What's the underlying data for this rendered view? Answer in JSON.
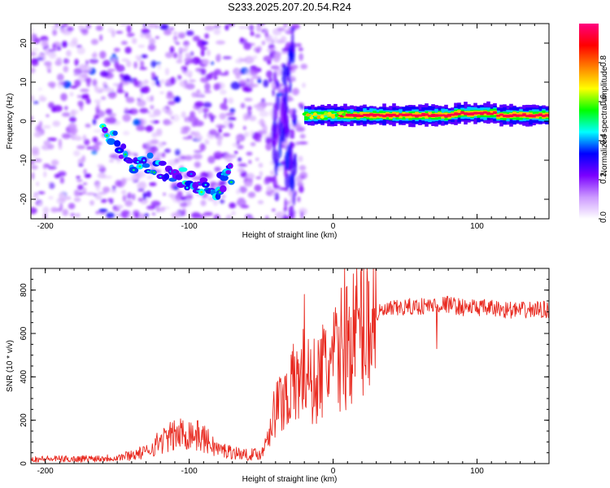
{
  "title": "S233.2025.207.20.54.R24",
  "colors": {
    "snr_line": "#e8281e",
    "frame": "#000000",
    "background": "#ffffff"
  },
  "chart_data": [
    {
      "type": "heatmap",
      "xlabel": "Height of straight line (km)",
      "ylabel": "Frequency (Hz)",
      "xlim": [
        -210,
        150
      ],
      "ylim": [
        -25,
        25
      ],
      "x_ticks": [
        -200,
        -100,
        0,
        100
      ],
      "y_ticks": [
        20,
        10,
        0,
        -10,
        -20
      ],
      "colorbar": {
        "label": "Normalized spectral amplitude",
        "range": [
          0.0,
          1.0
        ],
        "ticks": [
          "0.0",
          "0.2",
          "0.4",
          "0.6",
          "0.8"
        ],
        "tick_values": [
          0.0,
          0.2,
          0.4,
          0.6,
          0.8
        ],
        "colormap": [
          "#ffffff",
          "#cc99ff",
          "#7a00ff",
          "#0000ff",
          "#00ffff",
          "#00ff00",
          "#ffff00",
          "#ff8000",
          "#ff0000",
          "#ff0080"
        ]
      },
      "features": {
        "coherent_tone": {
          "x_range": [
            -20,
            150
          ],
          "frequency_hz": 1.5,
          "amplitude": 0.95
        },
        "descending_tone": {
          "x": [
            -160,
            -140,
            -120,
            -100,
            -80,
            -70
          ],
          "frequency_hz": [
            -2,
            -10,
            -12,
            -15,
            -17,
            -13
          ],
          "amplitude": 0.35
        },
        "noise_region": {
          "x_range": [
            -210,
            -20
          ],
          "frequency_range_hz": [
            -25,
            25
          ],
          "amplitude": 0.12
        }
      }
    },
    {
      "type": "line",
      "xlabel": "Height of straight line (km)",
      "ylabel": "SNR (10 * v/v)",
      "xlim": [
        -210,
        150
      ],
      "ylim": [
        0,
        900
      ],
      "x_ticks": [
        -200,
        -100,
        0,
        100
      ],
      "y_ticks": [
        0,
        200,
        400,
        600,
        800
      ],
      "series": [
        {
          "x": [
            -210,
            -180,
            -150,
            -130,
            -120,
            -110,
            -100,
            -90,
            -80,
            -70,
            -60,
            -50,
            -45,
            -40,
            -35,
            -30,
            -25,
            -20,
            -15,
            -10,
            -5,
            0,
            5,
            10,
            15,
            20,
            25,
            30,
            35,
            40,
            50,
            60,
            70,
            80,
            90,
            100,
            110,
            120,
            130,
            140,
            150
          ],
          "values": [
            15,
            15,
            20,
            40,
            80,
            100,
            110,
            90,
            50,
            40,
            30,
            35,
            150,
            250,
            300,
            340,
            380,
            420,
            360,
            400,
            450,
            460,
            520,
            560,
            600,
            640,
            670,
            690,
            700,
            710,
            720,
            725,
            730,
            735,
            720,
            720,
            715,
            710,
            705,
            710,
            710
          ],
          "color": "#e8281e"
        }
      ]
    }
  ]
}
